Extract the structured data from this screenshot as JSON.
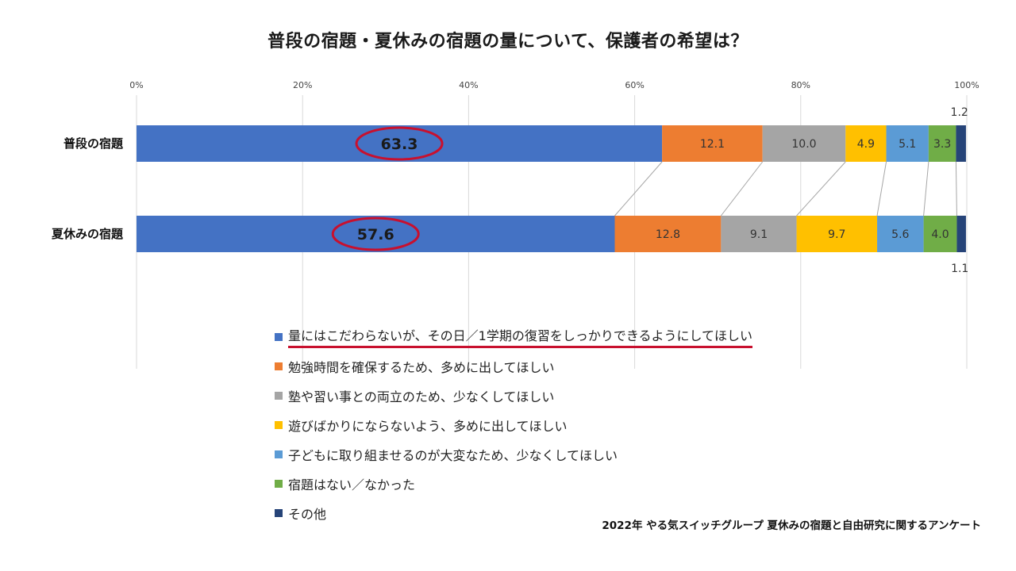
{
  "chart_data": {
    "type": "bar",
    "orientation": "horizontal-stacked-100",
    "title": "普段の宿題・夏休みの宿題の量について、保護者の希望は？",
    "categories": [
      "普段の宿題",
      "夏休みの宿題"
    ],
    "x_ticks": [
      "0%",
      "20%",
      "40%",
      "60%",
      "80%",
      "100%"
    ],
    "xlim": [
      0,
      100
    ],
    "grid": true,
    "legend_position": "bottom",
    "series": [
      {
        "name": "量にはこだわらないが、その日／1学期の復習をしっかりできるようにしてほしい",
        "color": "#4472c4",
        "values": [
          63.3,
          57.6
        ],
        "labels": [
          "63.3",
          "57.6"
        ]
      },
      {
        "name": "勉強時間を確保するため、多めに出してほしい",
        "color": "#ed7d31",
        "values": [
          12.1,
          12.8
        ],
        "labels": [
          "12.1",
          "12.8"
        ]
      },
      {
        "name": "塾や習い事との両立のため、少なくしてほしい",
        "color": "#a5a5a5",
        "values": [
          10.0,
          9.1
        ],
        "labels": [
          "10.0",
          "9.1"
        ]
      },
      {
        "name": "遊びばかりにならないよう、多めに出してほしい",
        "color": "#ffc000",
        "values": [
          4.9,
          9.7
        ],
        "labels": [
          "4.9",
          "9.7"
        ]
      },
      {
        "name": "子どもに取り組ませるのが大変なため、少なくしてほしい",
        "color": "#5b9bd5",
        "values": [
          5.1,
          5.6
        ],
        "labels": [
          "5.1",
          "5.6"
        ]
      },
      {
        "name": "宿題はない／なかった",
        "color": "#70ad47",
        "values": [
          3.3,
          4.0
        ],
        "labels": [
          "3.3",
          "4.0"
        ]
      },
      {
        "name": "その他",
        "color": "#264478",
        "values": [
          1.2,
          1.1
        ],
        "labels": [
          "1.2",
          "1.1"
        ]
      }
    ],
    "annotations": [
      "63.3 circled in red",
      "57.6 circled in red",
      "first legend entry underlined in red"
    ],
    "accent_color": "#c8102e"
  },
  "source": "2022年 やる気スイッチグループ 夏休みの宿題と自由研究に関するアンケート"
}
